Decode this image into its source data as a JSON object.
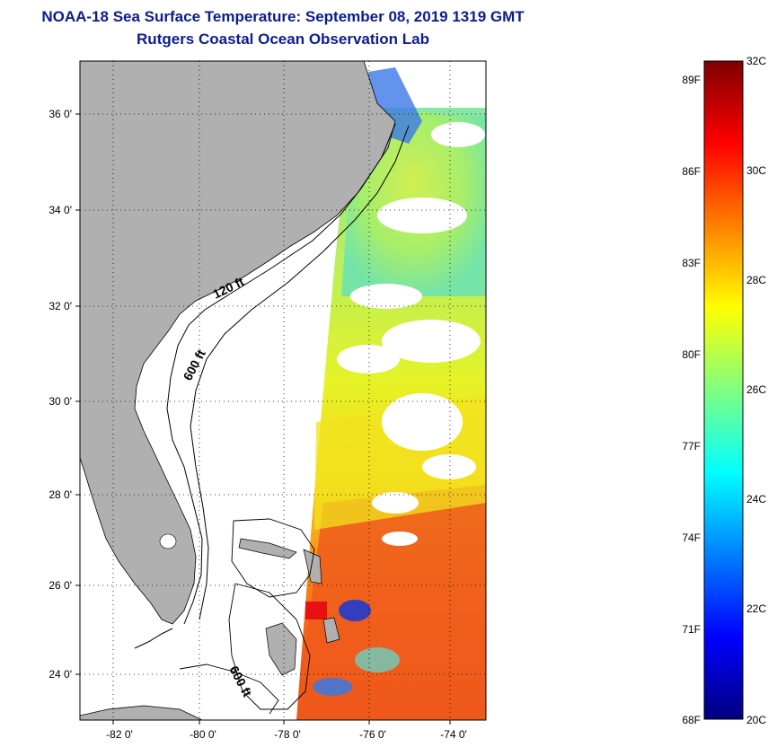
{
  "header": {
    "title": "NOAA-18 Sea Surface Temperature:  September 08, 2019 1319 GMT",
    "subtitle": "Rutgers Coastal Ocean Observation Lab"
  },
  "map": {
    "lat_labels": [
      "36 0'",
      "34 0'",
      "32 0'",
      "30 0'",
      "28 0'",
      "26 0'",
      "24 0'"
    ],
    "lon_labels": [
      "-82 0'",
      "-80 0'",
      "-78 0'",
      "-76 0'",
      "-74 0'"
    ],
    "contour_labels": [
      "120 ft",
      "600 ft",
      "600 ft"
    ],
    "colors": {
      "land": "#b0b0b0",
      "no_data": "#ffffff",
      "grid": "#000000"
    }
  },
  "colorbar": {
    "fahrenheit_labels": [
      "89F",
      "86F",
      "83F",
      "80F",
      "77F",
      "74F",
      "71F",
      "68F"
    ],
    "celsius_labels": [
      "32C",
      "30C",
      "28C",
      "26C",
      "24C",
      "22C",
      "20C"
    ],
    "min_c": 20,
    "max_c": 32,
    "stops": [
      "#00007f",
      "#0000ff",
      "#0080ff",
      "#00ffff",
      "#80ff80",
      "#ffff00",
      "#ff8000",
      "#ff0000",
      "#7f0000"
    ]
  }
}
